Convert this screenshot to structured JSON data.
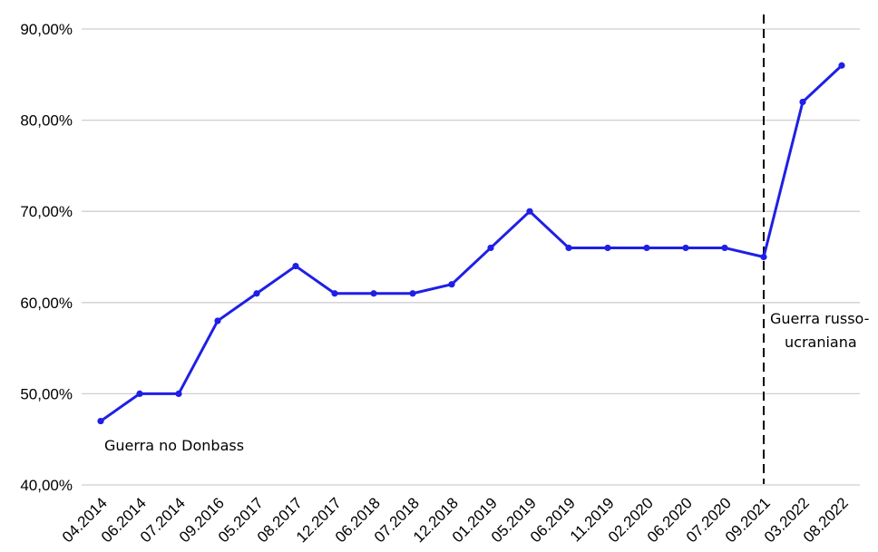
{
  "chart_data": {
    "type": "line",
    "title": "",
    "xlabel": "",
    "ylabel": "",
    "categories": [
      "04.2014",
      "06.2014",
      "07.2014",
      "09.2016",
      "05.2017",
      "08.2017",
      "12.2017",
      "06.2018",
      "07.2018",
      "12.2018",
      "01.2019",
      "05.2019",
      "06.2019",
      "11.2019",
      "02.2020",
      "06.2020",
      "07.2020",
      "09.2021",
      "03.2022",
      "08.2022"
    ],
    "series": [
      {
        "values": [
          47,
          50,
          50,
          58,
          61,
          64,
          61,
          61,
          61,
          62,
          66,
          70,
          66,
          66,
          66,
          66,
          66,
          65,
          82,
          86
        ]
      }
    ],
    "ylim": [
      40,
      90
    ],
    "yticks": [
      "40,00%",
      "50,00%",
      "60,00%",
      "70,00%",
      "80,00%",
      "90,00%"
    ],
    "grid": true,
    "line_color": "#1f1fe6",
    "annotations": [
      {
        "text": "Guerra no Donbass",
        "category": "04.2014"
      },
      {
        "text_lines": [
          "Guerra russo-",
          "ucraniana"
        ],
        "category": "09.2021",
        "marker": "dashed-vertical-line"
      }
    ]
  }
}
